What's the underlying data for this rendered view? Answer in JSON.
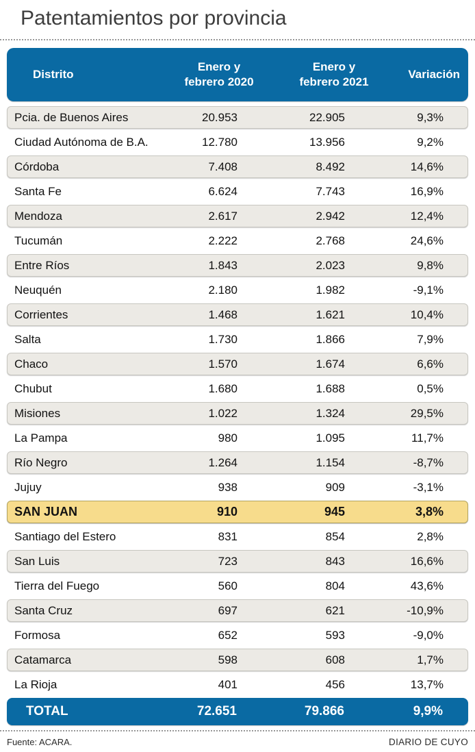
{
  "title": "Patentamientos por provincia",
  "colors": {
    "header_blue": "#0a6aa3",
    "row_gray": "#eceae5",
    "highlight_yellow": "#f7dc8c",
    "title_gray": "#3d3d3d"
  },
  "table": {
    "header": {
      "distrito": "Distrito",
      "col2020_line1": "Enero y",
      "col2020_line2": "febrero 2020",
      "col2021_line1": "Enero y",
      "col2021_line2": "febrero 2021",
      "variacion": "Variación"
    },
    "rows": [
      {
        "distrito": "Pcia. de Buenos Aires",
        "v2020": "20.953",
        "v2021": "22.905",
        "variacion": "9,3%",
        "highlight": false
      },
      {
        "distrito": "Ciudad Autónoma de B.A.",
        "v2020": "12.780",
        "v2021": "13.956",
        "variacion": "9,2%",
        "highlight": false
      },
      {
        "distrito": "Córdoba",
        "v2020": "7.408",
        "v2021": "8.492",
        "variacion": "14,6%",
        "highlight": false
      },
      {
        "distrito": "Santa Fe",
        "v2020": "6.624",
        "v2021": "7.743",
        "variacion": "16,9%",
        "highlight": false
      },
      {
        "distrito": "Mendoza",
        "v2020": "2.617",
        "v2021": "2.942",
        "variacion": "12,4%",
        "highlight": false
      },
      {
        "distrito": "Tucumán",
        "v2020": "2.222",
        "v2021": "2.768",
        "variacion": "24,6%",
        "highlight": false
      },
      {
        "distrito": "Entre Ríos",
        "v2020": "1.843",
        "v2021": "2.023",
        "variacion": "9,8%",
        "highlight": false
      },
      {
        "distrito": "Neuquén",
        "v2020": "2.180",
        "v2021": "1.982",
        "variacion": "-9,1%",
        "highlight": false
      },
      {
        "distrito": "Corrientes",
        "v2020": "1.468",
        "v2021": "1.621",
        "variacion": "10,4%",
        "highlight": false
      },
      {
        "distrito": "Salta",
        "v2020": "1.730",
        "v2021": "1.866",
        "variacion": "7,9%",
        "highlight": false
      },
      {
        "distrito": "Chaco",
        "v2020": "1.570",
        "v2021": "1.674",
        "variacion": "6,6%",
        "highlight": false
      },
      {
        "distrito": "Chubut",
        "v2020": "1.680",
        "v2021": "1.688",
        "variacion": "0,5%",
        "highlight": false
      },
      {
        "distrito": "Misiones",
        "v2020": "1.022",
        "v2021": "1.324",
        "variacion": "29,5%",
        "highlight": false
      },
      {
        "distrito": "La Pampa",
        "v2020": "980",
        "v2021": "1.095",
        "variacion": "11,7%",
        "highlight": false
      },
      {
        "distrito": "Río Negro",
        "v2020": "1.264",
        "v2021": "1.154",
        "variacion": "-8,7%",
        "highlight": false
      },
      {
        "distrito": "Jujuy",
        "v2020": "938",
        "v2021": "909",
        "variacion": "-3,1%",
        "highlight": false
      },
      {
        "distrito": "SAN JUAN",
        "v2020": "910",
        "v2021": "945",
        "variacion": "3,8%",
        "highlight": true
      },
      {
        "distrito": "Santiago del Estero",
        "v2020": "831",
        "v2021": "854",
        "variacion": "2,8%",
        "highlight": false
      },
      {
        "distrito": "San Luis",
        "v2020": "723",
        "v2021": "843",
        "variacion": "16,6%",
        "highlight": false
      },
      {
        "distrito": "Tierra del Fuego",
        "v2020": "560",
        "v2021": "804",
        "variacion": "43,6%",
        "highlight": false
      },
      {
        "distrito": "Santa Cruz",
        "v2020": "697",
        "v2021": "621",
        "variacion": "-10,9%",
        "highlight": false
      },
      {
        "distrito": "Formosa",
        "v2020": "652",
        "v2021": "593",
        "variacion": "-9,0%",
        "highlight": false
      },
      {
        "distrito": "Catamarca",
        "v2020": "598",
        "v2021": "608",
        "variacion": "1,7%",
        "highlight": false
      },
      {
        "distrito": "La Rioja",
        "v2020": "401",
        "v2021": "456",
        "variacion": "13,7%",
        "highlight": false
      }
    ],
    "total": {
      "label": "TOTAL",
      "v2020": "72.651",
      "v2021": "79.866",
      "variacion": "9,9%"
    }
  },
  "footer": {
    "source": "Fuente: ACARA.",
    "credit": "DIARIO DE CUYO"
  },
  "chart_data": {
    "type": "table",
    "title": "Patentamientos por provincia",
    "columns": [
      "Distrito",
      "Enero y febrero 2020",
      "Enero y febrero 2021",
      "Variación"
    ],
    "highlighted_row": "SAN JUAN",
    "rows": [
      [
        "Pcia. de Buenos Aires",
        20953,
        22905,
        9.3
      ],
      [
        "Ciudad Autónoma de B.A.",
        12780,
        13956,
        9.2
      ],
      [
        "Córdoba",
        7408,
        8492,
        14.6
      ],
      [
        "Santa Fe",
        6624,
        7743,
        16.9
      ],
      [
        "Mendoza",
        2617,
        2942,
        12.4
      ],
      [
        "Tucumán",
        2222,
        2768,
        24.6
      ],
      [
        "Entre Ríos",
        1843,
        2023,
        9.8
      ],
      [
        "Neuquén",
        2180,
        1982,
        -9.1
      ],
      [
        "Corrientes",
        1468,
        1621,
        10.4
      ],
      [
        "Salta",
        1730,
        1866,
        7.9
      ],
      [
        "Chaco",
        1570,
        1674,
        6.6
      ],
      [
        "Chubut",
        1680,
        1688,
        0.5
      ],
      [
        "Misiones",
        1022,
        1324,
        29.5
      ],
      [
        "La Pampa",
        980,
        1095,
        11.7
      ],
      [
        "Río Negro",
        1264,
        1154,
        -8.7
      ],
      [
        "Jujuy",
        938,
        909,
        -3.1
      ],
      [
        "SAN JUAN",
        910,
        945,
        3.8
      ],
      [
        "Santiago del Estero",
        831,
        854,
        2.8
      ],
      [
        "San Luis",
        723,
        843,
        16.6
      ],
      [
        "Tierra del Fuego",
        560,
        804,
        43.6
      ],
      [
        "Santa Cruz",
        697,
        621,
        -10.9
      ],
      [
        "Formosa",
        652,
        593,
        -9.0
      ],
      [
        "Catamarca",
        598,
        608,
        1.7
      ],
      [
        "La Rioja",
        401,
        456,
        13.7
      ]
    ],
    "total_row": [
      "TOTAL",
      72651,
      79866,
      9.9
    ],
    "source": "Fuente: ACARA.",
    "credit": "DIARIO DE CUYO"
  }
}
